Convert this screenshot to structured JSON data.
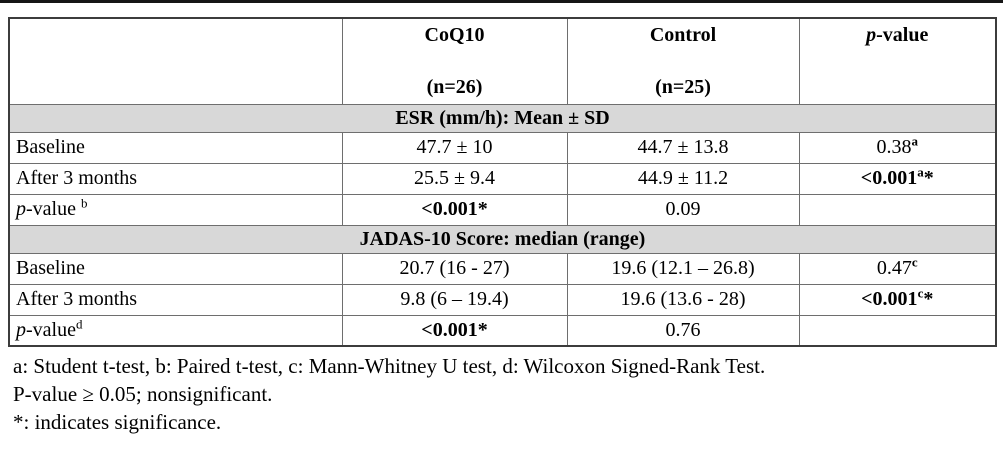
{
  "table": {
    "band_bg": "#d8d8d8",
    "header": {
      "corner": "",
      "group1_name": "CoQ10",
      "group1_n": "(n=26)",
      "group2_name": "Control",
      "group2_n": "(n=25)",
      "pcol_italic": "p",
      "pcol_rest": "-value"
    },
    "sections": [
      {
        "title": "ESR (mm/h): Mean ± SD",
        "rows": [
          {
            "label": "Baseline",
            "coq10": "47.7 ± 10",
            "control": "44.7 ± 13.8",
            "p_value": "0.38",
            "p_sup": "a",
            "p_star": ""
          },
          {
            "label": "After 3 months",
            "coq10": "25.5 ± 9.4",
            "control": "44.9 ± 11.2",
            "p_value": "<0.001",
            "p_sup": "a",
            "p_star": "*"
          },
          {
            "label_italic": "p",
            "label_rest": "-value ",
            "label_sup": "b",
            "coq10": "<0.001*",
            "control": "0.09",
            "p_value": "",
            "p_sup": "",
            "p_star": ""
          }
        ]
      },
      {
        "title": "JADAS-10 Score: median (range)",
        "rows": [
          {
            "label": "Baseline",
            "coq10": "20.7 (16 - 27)",
            "control": "19.6 (12.1 – 26.8)",
            "p_value": "0.47",
            "p_sup": "c",
            "p_star": ""
          },
          {
            "label": "After 3 months",
            "coq10": "9.8 (6 – 19.4)",
            "control": "19.6 (13.6 - 28)",
            "p_value": "<0.001",
            "p_sup": "c",
            "p_star": "*"
          },
          {
            "label_italic": "p",
            "label_rest": "-value",
            "label_sup": "d",
            "coq10": "<0.001*",
            "control": "0.76",
            "p_value": "",
            "p_sup": "",
            "p_star": ""
          }
        ]
      }
    ]
  },
  "footnotes": {
    "line1": "a: Student t-test, b: Paired t-test, c: Mann-Whitney U test, d: Wilcoxon Signed-Rank Test.",
    "line2": "P-value ≥ 0.05; nonsignificant.",
    "line3": "*: indicates significance."
  }
}
